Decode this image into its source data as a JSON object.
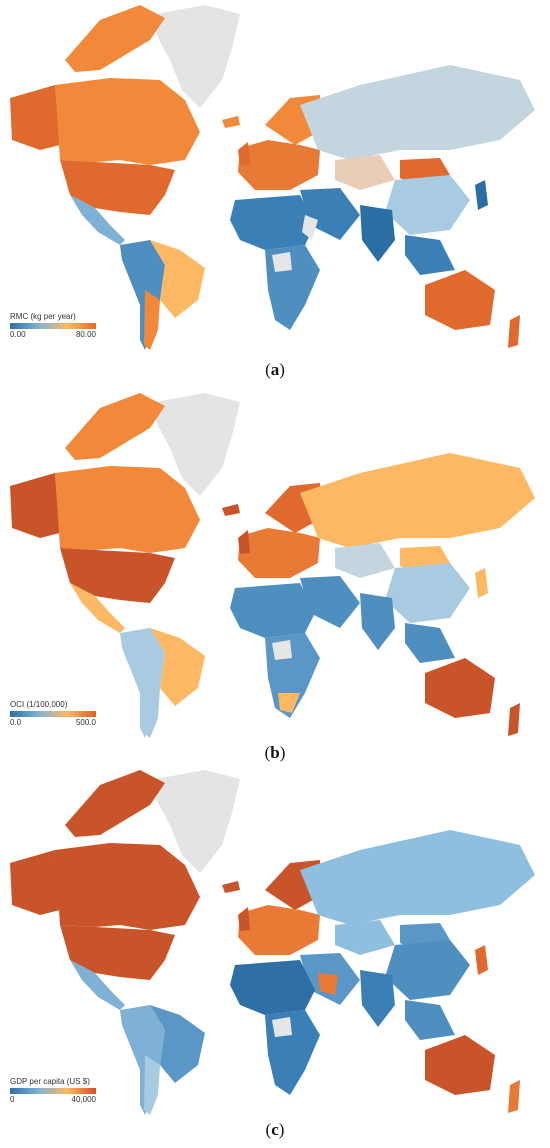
{
  "panels": [
    {
      "letter": "a",
      "legend": {
        "title": "RMC (kg per year)",
        "min": "0.00",
        "max": "80.00",
        "colors": [
          "#2f6fa6",
          "#7fb3d5",
          "#fdb863",
          "#e66a2c"
        ]
      }
    },
    {
      "letter": "b",
      "legend": {
        "title": "OCI (1/100,000)",
        "min": "0.0",
        "max": "500.0",
        "colors": [
          "#2f6fa6",
          "#7fb3d5",
          "#fdb863",
          "#d95f2b"
        ]
      }
    },
    {
      "letter": "c",
      "legend": {
        "title": "GDP per capita (US $)",
        "min": "0",
        "max": "40,000",
        "colors": [
          "#2f6fa6",
          "#7fb3d5",
          "#fdb863",
          "#d24e2a"
        ]
      }
    }
  ]
}
